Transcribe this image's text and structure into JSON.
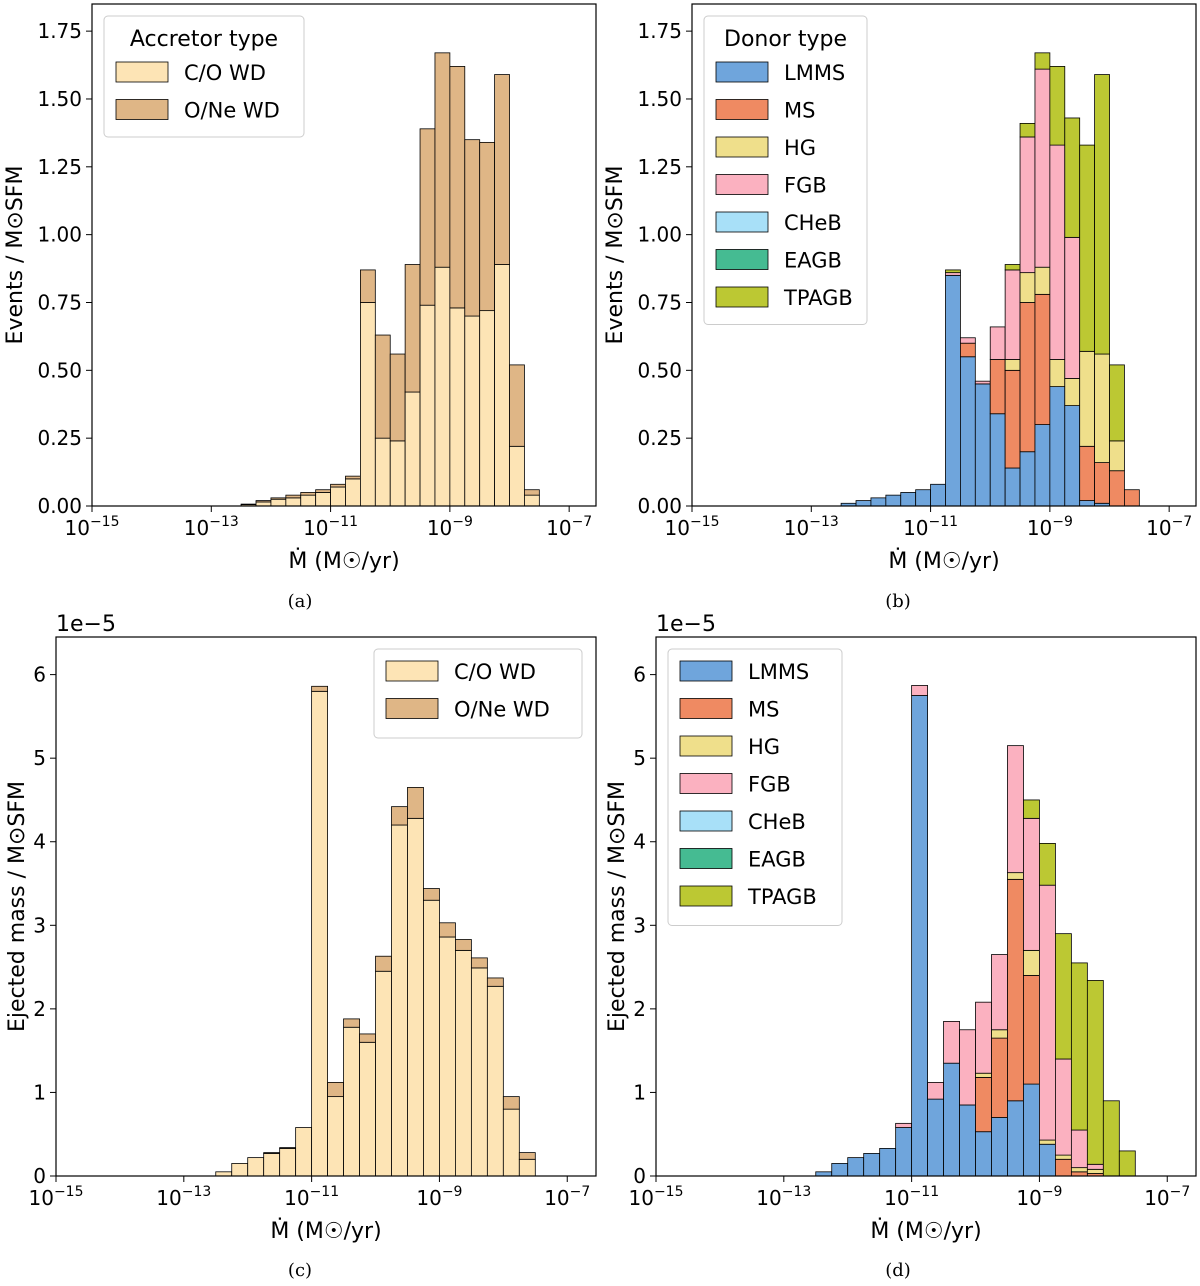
{
  "colors": {
    "CO_WD": "#fde4b5",
    "ONe_WD": "#dfb686",
    "LMMS": "#6fa5dc",
    "MS": "#ef8a62",
    "HG": "#efdf8b",
    "FGB": "#fbb1c0",
    "CHeB": "#a8e0f8",
    "EAGB": "#45bb92",
    "TPAGB": "#bcc833"
  },
  "chart_data": [
    {
      "id": "a",
      "type": "bar",
      "stacked": true,
      "caption": "(a)",
      "xlabel": "Ṁ (M☉/yr)",
      "ylabel": "Events / M⊙SFM",
      "x_scale": "log",
      "xlim_log10": [
        -15,
        -6.55
      ],
      "ylim": [
        0,
        1.85
      ],
      "x_ticks": [
        {
          "base": "10",
          "exp": "−15",
          "log": -15
        },
        {
          "base": "10",
          "exp": "−13",
          "log": -13
        },
        {
          "base": "10",
          "exp": "−11",
          "log": -11
        },
        {
          "base": "10",
          "exp": "−9",
          "log": -9
        },
        {
          "base": "10",
          "exp": "−7",
          "log": -7
        }
      ],
      "y_ticks": [
        {
          "label": "0.00",
          "value": 0
        },
        {
          "label": "0.25",
          "value": 0.25
        },
        {
          "label": "0.50",
          "value": 0.5
        },
        {
          "label": "0.75",
          "value": 0.75
        },
        {
          "label": "1.00",
          "value": 1.0
        },
        {
          "label": "1.25",
          "value": 1.25
        },
        {
          "label": "1.50",
          "value": 1.5
        },
        {
          "label": "1.75",
          "value": 1.75
        }
      ],
      "offset_text": "",
      "bin_start_log10": -12.5,
      "bin_width_log10": 0.25,
      "legend": {
        "title": "Accretor type",
        "position": "upper-left"
      },
      "series": [
        {
          "name": "C/O WD",
          "color_key": "CO_WD",
          "values": [
            0.005,
            0.015,
            0.025,
            0.03,
            0.04,
            0.05,
            0.07,
            0.1,
            0.75,
            0.25,
            0.24,
            0.42,
            0.74,
            0.88,
            0.73,
            0.7,
            0.72,
            0.89,
            0.22,
            0.04
          ]
        },
        {
          "name": "O/Ne WD",
          "color_key": "ONe_WD",
          "values": [
            0.002,
            0.005,
            0.005,
            0.01,
            0.01,
            0.01,
            0.01,
            0.01,
            0.12,
            0.38,
            0.32,
            0.47,
            0.65,
            0.79,
            0.89,
            0.65,
            0.62,
            0.7,
            0.3,
            0.02
          ]
        }
      ]
    },
    {
      "id": "b",
      "type": "bar",
      "stacked": true,
      "caption": "(b)",
      "xlabel": "Ṁ (M☉/yr)",
      "ylabel": "Events / M⊙SFM",
      "x_scale": "log",
      "xlim_log10": [
        -15,
        -6.55
      ],
      "ylim": [
        0,
        1.85
      ],
      "x_ticks": [
        {
          "base": "10",
          "exp": "−15",
          "log": -15
        },
        {
          "base": "10",
          "exp": "−13",
          "log": -13
        },
        {
          "base": "10",
          "exp": "−11",
          "log": -11
        },
        {
          "base": "10",
          "exp": "−9",
          "log": -9
        },
        {
          "base": "10",
          "exp": "−7",
          "log": -7
        }
      ],
      "y_ticks": [
        {
          "label": "0.00",
          "value": 0
        },
        {
          "label": "0.25",
          "value": 0.25
        },
        {
          "label": "0.50",
          "value": 0.5
        },
        {
          "label": "0.75",
          "value": 0.75
        },
        {
          "label": "1.00",
          "value": 1.0
        },
        {
          "label": "1.25",
          "value": 1.25
        },
        {
          "label": "1.50",
          "value": 1.5
        },
        {
          "label": "1.75",
          "value": 1.75
        }
      ],
      "offset_text": "",
      "bin_start_log10": -12.5,
      "bin_width_log10": 0.25,
      "legend": {
        "title": "Donor type",
        "position": "upper-left"
      },
      "series": [
        {
          "name": "LMMS",
          "color_key": "LMMS",
          "values": [
            0.01,
            0.02,
            0.03,
            0.04,
            0.05,
            0.06,
            0.08,
            0.85,
            0.55,
            0.45,
            0.34,
            0.14,
            0.2,
            0.3,
            0.44,
            0.37,
            0.02,
            0.01,
            0.0,
            0.0
          ]
        },
        {
          "name": "MS",
          "color_key": "MS",
          "values": [
            0.0,
            0.0,
            0.0,
            0.0,
            0.0,
            0.0,
            0.0,
            0.0,
            0.05,
            0.0,
            0.2,
            0.36,
            0.55,
            0.48,
            0.0,
            0.0,
            0.2,
            0.15,
            0.13,
            0.06
          ]
        },
        {
          "name": "HG",
          "color_key": "HG",
          "values": [
            0.0,
            0.0,
            0.0,
            0.0,
            0.0,
            0.0,
            0.0,
            0.0,
            0.0,
            0.0,
            0.0,
            0.04,
            0.11,
            0.1,
            0.1,
            0.1,
            0.35,
            0.4,
            0.11,
            0.0
          ]
        },
        {
          "name": "FGB",
          "color_key": "FGB",
          "values": [
            0.0,
            0.0,
            0.0,
            0.0,
            0.0,
            0.0,
            0.0,
            0.01,
            0.02,
            0.01,
            0.12,
            0.33,
            0.5,
            0.73,
            0.79,
            0.52,
            0.0,
            0.0,
            0.0,
            0.0
          ]
        },
        {
          "name": "CHeB",
          "color_key": "CHeB",
          "values": [
            0.0,
            0.0,
            0.0,
            0.0,
            0.0,
            0.0,
            0.0,
            0.0,
            0.0,
            0.0,
            0.0,
            0.0,
            0.0,
            0.0,
            0.0,
            0.0,
            0.0,
            0.0,
            0.0,
            0.0
          ]
        },
        {
          "name": "EAGB",
          "color_key": "EAGB",
          "values": [
            0.0,
            0.0,
            0.0,
            0.0,
            0.0,
            0.0,
            0.0,
            0.0,
            0.0,
            0.0,
            0.0,
            0.0,
            0.0,
            0.0,
            0.0,
            0.0,
            0.0,
            0.0,
            0.0,
            0.0
          ]
        },
        {
          "name": "TPAGB",
          "color_key": "TPAGB",
          "values": [
            0.0,
            0.0,
            0.0,
            0.0,
            0.0,
            0.0,
            0.0,
            0.01,
            0.0,
            0.0,
            0.0,
            0.02,
            0.05,
            0.06,
            0.29,
            0.44,
            0.76,
            1.03,
            0.28,
            0.0
          ]
        }
      ]
    },
    {
      "id": "c",
      "type": "bar",
      "stacked": true,
      "caption": "(c)",
      "xlabel": "Ṁ (M☉/yr)",
      "ylabel": "Ejected mass / M⊙SFM",
      "x_scale": "log",
      "xlim_log10": [
        -15,
        -6.55
      ],
      "ylim": [
        0,
        6.45
      ],
      "x_ticks": [
        {
          "base": "10",
          "exp": "−15",
          "log": -15
        },
        {
          "base": "10",
          "exp": "−13",
          "log": -13
        },
        {
          "base": "10",
          "exp": "−11",
          "log": -11
        },
        {
          "base": "10",
          "exp": "−9",
          "log": -9
        },
        {
          "base": "10",
          "exp": "−7",
          "log": -7
        }
      ],
      "y_ticks": [
        {
          "label": "0",
          "value": 0
        },
        {
          "label": "1",
          "value": 1
        },
        {
          "label": "2",
          "value": 2
        },
        {
          "label": "3",
          "value": 3
        },
        {
          "label": "4",
          "value": 4
        },
        {
          "label": "5",
          "value": 5
        },
        {
          "label": "6",
          "value": 6
        }
      ],
      "offset_text": "1e−5",
      "bin_start_log10": -12.5,
      "bin_width_log10": 0.25,
      "legend": {
        "title": "",
        "position": "upper-right"
      },
      "series": [
        {
          "name": "C/O WD",
          "color_key": "CO_WD",
          "values": [
            0.05,
            0.15,
            0.22,
            0.27,
            0.33,
            0.58,
            5.8,
            0.95,
            1.78,
            1.6,
            2.45,
            4.2,
            4.28,
            3.3,
            2.86,
            2.7,
            2.49,
            2.27,
            0.8,
            0.2
          ]
        },
        {
          "name": "O/Ne WD",
          "color_key": "ONe_WD",
          "values": [
            0.0,
            0.0,
            0.0,
            0.01,
            0.01,
            0.0,
            0.06,
            0.17,
            0.1,
            0.1,
            0.18,
            0.22,
            0.37,
            0.14,
            0.17,
            0.13,
            0.12,
            0.1,
            0.15,
            0.08
          ]
        }
      ]
    },
    {
      "id": "d",
      "type": "bar",
      "stacked": true,
      "caption": "(d)",
      "xlabel": "Ṁ (M☉/yr)",
      "ylabel": "Ejected mass / M⊙SFM",
      "x_scale": "log",
      "xlim_log10": [
        -15,
        -6.55
      ],
      "ylim": [
        0,
        6.45
      ],
      "x_ticks": [
        {
          "base": "10",
          "exp": "−15",
          "log": -15
        },
        {
          "base": "10",
          "exp": "−13",
          "log": -13
        },
        {
          "base": "10",
          "exp": "−11",
          "log": -11
        },
        {
          "base": "10",
          "exp": "−9",
          "log": -9
        },
        {
          "base": "10",
          "exp": "−7",
          "log": -7
        }
      ],
      "y_ticks": [
        {
          "label": "0",
          "value": 0
        },
        {
          "label": "1",
          "value": 1
        },
        {
          "label": "2",
          "value": 2
        },
        {
          "label": "3",
          "value": 3
        },
        {
          "label": "4",
          "value": 4
        },
        {
          "label": "5",
          "value": 5
        },
        {
          "label": "6",
          "value": 6
        }
      ],
      "offset_text": "1e−5",
      "bin_start_log10": -12.5,
      "bin_width_log10": 0.25,
      "legend": {
        "title": "",
        "position": "upper-left"
      },
      "series": [
        {
          "name": "LMMS",
          "color_key": "LMMS",
          "values": [
            0.05,
            0.15,
            0.22,
            0.27,
            0.33,
            0.58,
            5.75,
            0.92,
            1.35,
            0.85,
            0.53,
            0.7,
            0.9,
            1.1,
            0.38,
            0.0,
            0.0,
            0.0,
            0.0,
            0.0
          ]
        },
        {
          "name": "MS",
          "color_key": "MS",
          "values": [
            0.0,
            0.0,
            0.0,
            0.0,
            0.0,
            0.0,
            0.0,
            0.0,
            0.0,
            0.0,
            0.65,
            0.95,
            2.65,
            1.3,
            0.0,
            0.2,
            0.05,
            0.03,
            0.0,
            0.0
          ]
        },
        {
          "name": "HG",
          "color_key": "HG",
          "values": [
            0.0,
            0.0,
            0.0,
            0.0,
            0.0,
            0.0,
            0.0,
            0.0,
            0.0,
            0.0,
            0.05,
            0.1,
            0.08,
            0.3,
            0.05,
            0.05,
            0.05,
            0.05,
            0.0,
            0.0
          ]
        },
        {
          "name": "FGB",
          "color_key": "FGB",
          "values": [
            0.0,
            0.0,
            0.0,
            0.0,
            0.0,
            0.05,
            0.12,
            0.2,
            0.5,
            0.9,
            0.85,
            0.9,
            1.52,
            1.58,
            3.05,
            1.15,
            0.45,
            0.06,
            0.0,
            0.0
          ]
        },
        {
          "name": "CHeB",
          "color_key": "CHeB",
          "values": [
            0.0,
            0.0,
            0.0,
            0.0,
            0.0,
            0.0,
            0.0,
            0.0,
            0.0,
            0.0,
            0.0,
            0.0,
            0.0,
            0.0,
            0.0,
            0.0,
            0.0,
            0.0,
            0.0,
            0.0
          ]
        },
        {
          "name": "EAGB",
          "color_key": "EAGB",
          "values": [
            0.0,
            0.0,
            0.0,
            0.0,
            0.0,
            0.0,
            0.0,
            0.0,
            0.0,
            0.0,
            0.0,
            0.0,
            0.0,
            0.0,
            0.0,
            0.0,
            0.0,
            0.0,
            0.0,
            0.0
          ]
        },
        {
          "name": "TPAGB",
          "color_key": "TPAGB",
          "values": [
            0.0,
            0.0,
            0.0,
            0.0,
            0.0,
            0.0,
            0.0,
            0.0,
            0.0,
            0.0,
            0.0,
            0.0,
            0.0,
            0.22,
            0.5,
            1.5,
            2.0,
            2.2,
            0.9,
            0.3
          ]
        }
      ]
    }
  ]
}
